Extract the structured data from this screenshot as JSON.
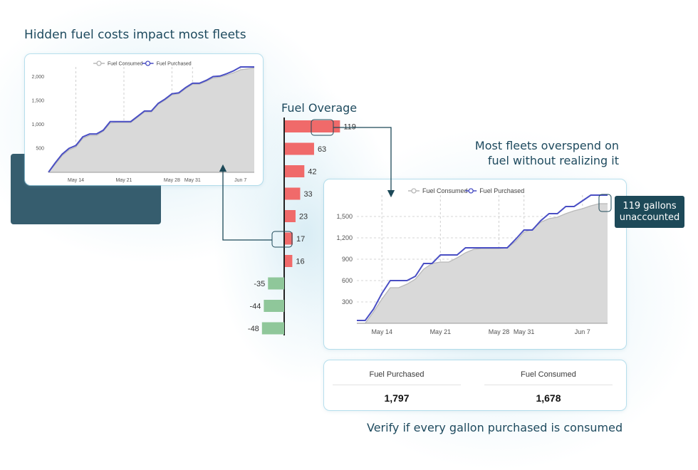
{
  "headlines": {
    "top_left": "Hidden fuel costs impact most fleets",
    "right_line1": "Most fleets overspend on",
    "right_line2": "fuel without realizing it",
    "bottom": "Verify if every gallon purchased is consumed"
  },
  "callout": {
    "line1": "119 gallons",
    "line2": "unaccounted"
  },
  "summary": {
    "purchased_label": "Fuel Purchased",
    "purchased_value": "1,797",
    "consumed_label": "Fuel Consumed",
    "consumed_value": "1,678"
  },
  "colors": {
    "purchased_line": "#4a4fc4",
    "consumed_line": "#b9b9b9",
    "consumed_fill": "#d9d9d9",
    "positive_bar": "#f06a6a",
    "negative_bar": "#8fc79a",
    "connector": "#1d4958",
    "dark_block": "#365d6e"
  },
  "chart_data": [
    {
      "id": "small-line",
      "type": "area",
      "legend": [
        "Fuel Consumed",
        "Fuel Purchased"
      ],
      "legend_position": "top-center",
      "x_ticks": [
        "May 14",
        "May 21",
        "May 28",
        "May 31",
        "Jun 7"
      ],
      "y_ticks": [
        "500",
        "1,000",
        "1,500",
        "2,000"
      ],
      "y_tick_values": [
        500,
        1000,
        1500,
        2000
      ],
      "ylim": [
        0,
        2200
      ],
      "x_range": [
        0,
        30
      ],
      "x_tick_positions": [
        4,
        11,
        18,
        21,
        28
      ],
      "grid": "vertical dashed",
      "series": [
        {
          "name": "Fuel Purchased",
          "x": [
            0,
            1,
            2,
            3,
            4,
            5,
            6,
            7,
            8,
            9,
            10,
            11,
            12,
            13,
            14,
            15,
            16,
            17,
            18,
            19,
            20,
            21,
            22,
            23,
            24,
            25,
            26,
            27,
            28,
            29,
            30
          ],
          "y": [
            0,
            200,
            380,
            500,
            560,
            740,
            800,
            800,
            880,
            1060,
            1060,
            1060,
            1060,
            1170,
            1280,
            1280,
            1440,
            1530,
            1640,
            1660,
            1770,
            1860,
            1860,
            1920,
            2000,
            2010,
            2060,
            2120,
            2200,
            2200,
            2200
          ]
        },
        {
          "name": "Fuel Consumed",
          "x": [
            0,
            1,
            2,
            3,
            4,
            5,
            6,
            7,
            8,
            9,
            10,
            11,
            12,
            13,
            14,
            15,
            16,
            17,
            18,
            19,
            20,
            21,
            22,
            23,
            24,
            25,
            26,
            27,
            28,
            29,
            30
          ],
          "y": [
            0,
            170,
            350,
            470,
            530,
            710,
            770,
            770,
            860,
            1030,
            1040,
            1040,
            1040,
            1150,
            1260,
            1260,
            1420,
            1510,
            1620,
            1640,
            1750,
            1840,
            1840,
            1900,
            1970,
            1990,
            2030,
            2080,
            2140,
            2160,
            2180
          ]
        }
      ]
    },
    {
      "id": "overage-bars",
      "type": "bar",
      "orientation": "horizontal",
      "title": "Fuel Overage",
      "values": [
        119,
        63,
        42,
        33,
        23,
        17,
        16,
        -35,
        -44,
        -48
      ],
      "labels": [
        "119",
        "63",
        "42",
        "33",
        "23",
        "17",
        "16",
        "-35",
        "-44",
        "-48"
      ]
    },
    {
      "id": "large-line",
      "type": "area",
      "legend": [
        "Fuel Consumed",
        "Fuel Purchased"
      ],
      "legend_position": "top-center",
      "x_ticks": [
        "May 14",
        "May 21",
        "May 28",
        "May 31",
        "Jun 7"
      ],
      "y_ticks": [
        "300",
        "600",
        "900",
        "1,200",
        "1,500"
      ],
      "y_tick_values": [
        300,
        600,
        900,
        1200,
        1500
      ],
      "ylim": [
        0,
        1800
      ],
      "x_range": [
        0,
        30
      ],
      "x_tick_positions": [
        3,
        10,
        17,
        20,
        27
      ],
      "grid": "both dashed",
      "series": [
        {
          "name": "Fuel Purchased",
          "x": [
            0,
            1,
            2,
            3,
            4,
            5,
            6,
            7,
            8,
            9,
            10,
            11,
            12,
            13,
            14,
            15,
            16,
            17,
            18,
            19,
            20,
            21,
            22,
            23,
            24,
            25,
            26,
            27,
            28,
            29,
            30
          ],
          "y": [
            40,
            40,
            200,
            420,
            600,
            600,
            600,
            660,
            840,
            840,
            960,
            960,
            960,
            1060,
            1060,
            1060,
            1060,
            1060,
            1060,
            1180,
            1310,
            1310,
            1440,
            1540,
            1540,
            1640,
            1640,
            1720,
            1800,
            1800,
            1800
          ]
        },
        {
          "name": "Fuel Consumed",
          "x": [
            0,
            1,
            2,
            3,
            4,
            5,
            6,
            7,
            8,
            9,
            10,
            11,
            12,
            13,
            14,
            15,
            16,
            17,
            18,
            19,
            20,
            21,
            22,
            23,
            24,
            25,
            26,
            27,
            28,
            29,
            30
          ],
          "y": [
            0,
            0,
            160,
            340,
            500,
            500,
            550,
            620,
            760,
            840,
            860,
            860,
            920,
            990,
            1040,
            1050,
            1050,
            1050,
            1060,
            1150,
            1280,
            1320,
            1420,
            1470,
            1490,
            1540,
            1580,
            1610,
            1650,
            1680,
            1680
          ]
        }
      ]
    }
  ]
}
